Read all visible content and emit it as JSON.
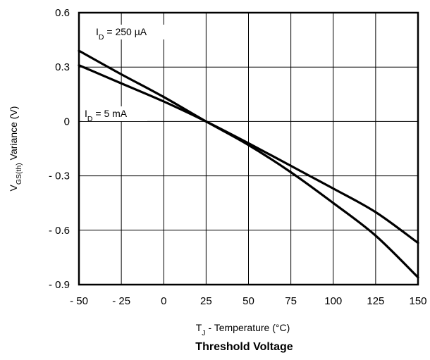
{
  "chart_data": {
    "type": "line",
    "title": "Threshold Voltage",
    "xlabel": {
      "main": "T",
      "sub": "J",
      "rest": " - Temperature (°C)"
    },
    "ylabel": {
      "main": "V",
      "sub": "GS(th)",
      "rest": "  Variance (V)"
    },
    "xlim": [
      -50,
      150
    ],
    "ylim": [
      -0.9,
      0.6
    ],
    "x_ticks": [
      -50,
      -25,
      0,
      25,
      50,
      75,
      100,
      125,
      150
    ],
    "x_tick_labels": [
      "- 50",
      "- 25",
      "0",
      "25",
      "50",
      "75",
      "100",
      "125",
      "150"
    ],
    "y_ticks": [
      0.6,
      0.3,
      0,
      -0.3,
      -0.6,
      -0.9
    ],
    "y_tick_labels": [
      "0.6",
      "0.3",
      "0",
      "- 0.3",
      "- 0.6",
      "- 0.9"
    ],
    "grid": true,
    "series": [
      {
        "id": "id-250ua",
        "label": {
          "main": "I",
          "sub": "D",
          "rest": " = 250 µA"
        },
        "x": [
          -50,
          -25,
          0,
          25,
          50,
          75,
          100,
          125,
          150
        ],
        "y": [
          0.39,
          0.26,
          0.135,
          0.0,
          -0.13,
          -0.28,
          -0.45,
          -0.63,
          -0.86
        ]
      },
      {
        "id": "id-5ma",
        "label": {
          "main": "I",
          "sub": "D",
          "rest": " = 5 mA"
        },
        "x": [
          -50,
          -25,
          0,
          25,
          50,
          75,
          100,
          125,
          150
        ],
        "y": [
          0.31,
          0.21,
          0.11,
          0.0,
          -0.12,
          -0.245,
          -0.37,
          -0.5,
          -0.67
        ]
      }
    ]
  }
}
